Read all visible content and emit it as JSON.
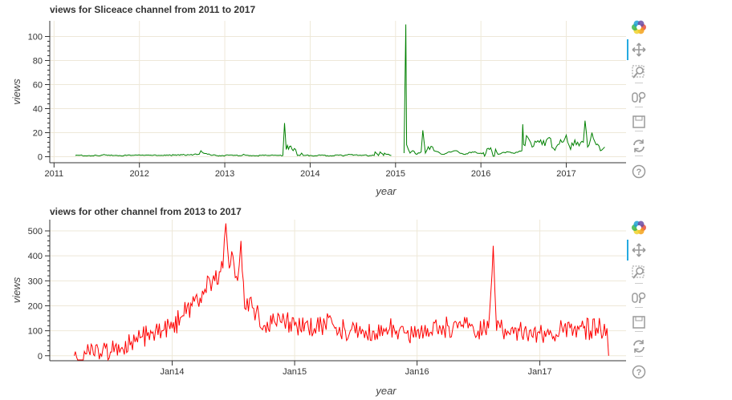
{
  "chart_data": [
    {
      "type": "line",
      "title": "views for Sliceace channel from 2011 to 2017",
      "xlabel": "year",
      "ylabel": "views",
      "color": "#008000",
      "xlim": [
        2010.95,
        2017.7
      ],
      "ylim": [
        -5,
        113
      ],
      "x_ticks": [
        "2011",
        "2012",
        "2013",
        "2014",
        "2015",
        "2016",
        "2017"
      ],
      "y_ticks": [
        0,
        20,
        40,
        60,
        80,
        100
      ],
      "series": [
        {
          "x": [
            2011.25,
            2011.5,
            2011.6,
            2011.7,
            2011.9,
            2012.2,
            2012.5,
            2012.7,
            2012.72,
            2012.75,
            2012.8,
            2012.9,
            2013.1,
            2013.2,
            2013.22,
            2013.3,
            2013.5,
            2013.68,
            2013.7,
            2013.72,
            2013.8,
            2013.83,
            2013.85,
            2013.88,
            2013.9,
            2013.92,
            2014.0,
            2014.2,
            2014.4,
            2014.45,
            2014.6,
            2014.7,
            2014.75,
            2014.76,
            2014.8,
            2014.82,
            2014.86,
            2014.87,
            2014.9,
            2014.95
          ],
          "y": [
            1,
            1,
            1.5,
            1,
            1,
            1,
            1.5,
            2,
            5,
            3,
            2,
            1,
            1,
            1,
            2,
            1,
            1,
            1,
            28,
            6,
            5,
            6,
            1,
            1,
            3,
            1,
            1,
            1,
            1,
            2,
            1,
            1,
            1,
            4,
            1,
            4,
            1,
            3,
            2,
            1
          ]
        },
        {
          "x": [
            2015.1,
            2015.12,
            2015.13,
            2015.15,
            2015.17,
            2015.2,
            2015.25,
            2015.3,
            2015.32,
            2015.35,
            2015.4,
            2015.45,
            2015.5,
            2015.55,
            2015.6,
            2015.7,
            2015.8,
            2015.9,
            2016.0,
            2016.1,
            2016.2,
            2016.3,
            2016.4,
            2016.48,
            2016.49,
            2016.5,
            2016.55,
            2016.6,
            2016.65,
            2016.7,
            2016.75,
            2016.8,
            2016.85,
            2016.9,
            2016.95,
            2017.0,
            2017.05,
            2017.1,
            2017.15,
            2017.2,
            2017.22,
            2017.25,
            2017.3,
            2017.35,
            2017.4,
            2017.45
          ],
          "y": [
            3,
            110,
            10,
            6,
            3,
            5,
            2,
            4,
            22,
            3,
            6,
            5,
            4,
            2,
            3,
            5,
            2,
            4,
            3,
            6,
            2,
            4,
            3,
            5,
            27,
            10,
            16,
            8,
            12,
            14,
            9,
            16,
            7,
            10,
            12,
            18,
            6,
            14,
            9,
            12,
            30,
            8,
            20,
            10,
            5,
            8
          ]
        }
      ]
    },
    {
      "type": "line",
      "title": "views for other channel from 2013 to 2017",
      "xlabel": "year",
      "ylabel": "views",
      "color": "#ff0000",
      "xlim": [
        "2013-01-01",
        "2017-09-15"
      ],
      "ylim": [
        -20,
        545
      ],
      "x_ticks": [
        {
          "label": "Jan14",
          "x": "2014-01-01"
        },
        {
          "label": "Jan15",
          "x": "2015-01-01"
        },
        {
          "label": "Jan16",
          "x": "2016-01-01"
        },
        {
          "label": "Jan17",
          "x": "2017-01-01"
        }
      ],
      "y_ticks": [
        0,
        100,
        200,
        300,
        400,
        500
      ],
      "series": [
        {
          "x": [
            "2013-03-15",
            "2013-05-01",
            "2013-06-01",
            "2013-07-01",
            "2013-08-01",
            "2013-09-01",
            "2013-10-01",
            "2013-11-01",
            "2013-12-01",
            "2014-01-01",
            "2014-02-01",
            "2014-03-01",
            "2014-04-01",
            "2014-05-01",
            "2014-06-01",
            "2014-06-10",
            "2014-06-20",
            "2014-07-01",
            "2014-07-15",
            "2014-07-25",
            "2014-08-05",
            "2014-08-20",
            "2014-09-01",
            "2014-10-01",
            "2014-11-01",
            "2014-12-01",
            "2015-01-01",
            "2015-02-01",
            "2015-03-01",
            "2015-04-01",
            "2015-05-01",
            "2015-06-01",
            "2015-07-01",
            "2015-08-01",
            "2015-09-01",
            "2015-10-01",
            "2015-11-01",
            "2015-12-01",
            "2016-01-01",
            "2016-02-01",
            "2016-03-01",
            "2016-04-01",
            "2016-05-01",
            "2016-06-01",
            "2016-07-01",
            "2016-08-01",
            "2016-08-15",
            "2016-08-25",
            "2016-09-01",
            "2016-10-01",
            "2016-11-01",
            "2016-12-01",
            "2017-01-01",
            "2017-02-01",
            "2017-03-01",
            "2017-04-01",
            "2017-05-01",
            "2017-06-01",
            "2017-07-01",
            "2017-07-20",
            "2017-07-25"
          ],
          "y": [
            0,
            3,
            8,
            15,
            28,
            55,
            75,
            90,
            100,
            110,
            160,
            200,
            260,
            300,
            350,
            530,
            350,
            400,
            300,
            460,
            190,
            230,
            190,
            120,
            140,
            140,
            120,
            130,
            110,
            130,
            110,
            100,
            90,
            100,
            90,
            110,
            100,
            90,
            100,
            110,
            100,
            120,
            110,
            110,
            100,
            110,
            440,
            100,
            130,
            90,
            100,
            100,
            90,
            100,
            100,
            110,
            120,
            100,
            110,
            110,
            0
          ]
        }
      ]
    }
  ],
  "toolbar": {
    "tools": [
      {
        "name": "bokeh-logo-icon"
      },
      {
        "name": "pan-icon"
      },
      {
        "name": "box-zoom-icon"
      },
      {
        "name": "wheel-zoom-icon"
      },
      {
        "name": "save-icon"
      },
      {
        "name": "reset-icon"
      },
      {
        "name": "help-icon"
      }
    ]
  }
}
